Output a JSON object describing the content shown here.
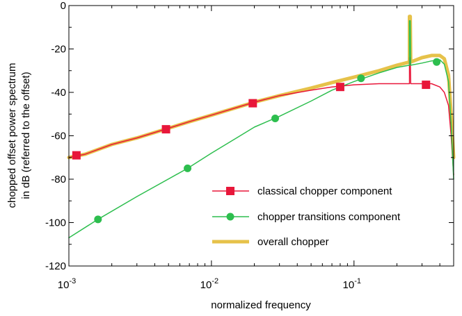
{
  "chart_data": {
    "type": "line",
    "xlabel": "normalized frequency",
    "ylabel_lines": [
      "chopped offset power spectrum",
      "in dB (referred to  the offset)"
    ],
    "x_scale": "log",
    "xlim": [
      0.001,
      0.5
    ],
    "ylim": [
      -120,
      0
    ],
    "x_ticks": [
      {
        "value": 0.001,
        "base": "10",
        "exp": "-3"
      },
      {
        "value": 0.01,
        "base": "10",
        "exp": "-2"
      },
      {
        "value": 0.1,
        "base": "10",
        "exp": "-1"
      }
    ],
    "y_ticks": [
      0,
      -20,
      -40,
      -60,
      -80,
      -100,
      -120
    ],
    "grid": false,
    "legend_position": "lower-right",
    "series": [
      {
        "name": "overall chopper",
        "color": "#E6C24A",
        "style": "thick-line",
        "points": [
          [
            0.001,
            -70
          ],
          [
            0.0013,
            -68.5
          ],
          [
            0.002,
            -64
          ],
          [
            0.003,
            -61
          ],
          [
            0.005,
            -56.5
          ],
          [
            0.007,
            -53.5
          ],
          [
            0.01,
            -50.5
          ],
          [
            0.015,
            -47
          ],
          [
            0.02,
            -44.5
          ],
          [
            0.03,
            -41.5
          ],
          [
            0.05,
            -38
          ],
          [
            0.07,
            -35.5
          ],
          [
            0.1,
            -33
          ],
          [
            0.15,
            -30
          ],
          [
            0.2,
            -27.5
          ],
          [
            0.245,
            -26
          ],
          [
            0.245,
            -5
          ],
          [
            0.248,
            -5
          ],
          [
            0.25,
            -26
          ],
          [
            0.3,
            -24
          ],
          [
            0.35,
            -23
          ],
          [
            0.4,
            -23
          ],
          [
            0.43,
            -24.5
          ],
          [
            0.46,
            -32
          ],
          [
            0.48,
            -50
          ],
          [
            0.5,
            -70
          ]
        ]
      },
      {
        "name": "classical chopper component",
        "color": "#E8173A",
        "marker": "square",
        "points": [
          [
            0.001,
            -70
          ],
          [
            0.0013,
            -68.5
          ],
          [
            0.002,
            -64
          ],
          [
            0.003,
            -61
          ],
          [
            0.005,
            -56.5
          ],
          [
            0.007,
            -53.5
          ],
          [
            0.01,
            -50.5
          ],
          [
            0.015,
            -47
          ],
          [
            0.02,
            -44.5
          ],
          [
            0.03,
            -41.5
          ],
          [
            0.05,
            -39
          ],
          [
            0.07,
            -37.5
          ],
          [
            0.1,
            -36.5
          ],
          [
            0.15,
            -36
          ],
          [
            0.2,
            -36
          ],
          [
            0.245,
            -36
          ],
          [
            0.245,
            -24
          ],
          [
            0.248,
            -24
          ],
          [
            0.25,
            -36
          ],
          [
            0.3,
            -36
          ],
          [
            0.35,
            -36
          ],
          [
            0.4,
            -37.5
          ],
          [
            0.43,
            -40
          ],
          [
            0.46,
            -46
          ],
          [
            0.48,
            -60
          ],
          [
            0.5,
            -78
          ]
        ],
        "markers": [
          [
            0.00113,
            -69
          ],
          [
            0.0048,
            -57
          ],
          [
            0.0195,
            -45
          ],
          [
            0.08,
            -37.5
          ],
          [
            0.32,
            -36.5
          ]
        ]
      },
      {
        "name": "chopper transitions component",
        "color": "#2DBE4E",
        "marker": "circle",
        "points": [
          [
            0.001,
            -107
          ],
          [
            0.0016,
            -98.5
          ],
          [
            0.003,
            -88
          ],
          [
            0.0068,
            -75
          ],
          [
            0.01,
            -68
          ],
          [
            0.015,
            -61
          ],
          [
            0.02,
            -56
          ],
          [
            0.03,
            -51
          ],
          [
            0.05,
            -44
          ],
          [
            0.07,
            -39
          ],
          [
            0.1,
            -35
          ],
          [
            0.15,
            -31
          ],
          [
            0.2,
            -28.5
          ],
          [
            0.245,
            -27.5
          ],
          [
            0.245,
            -7
          ],
          [
            0.248,
            -7
          ],
          [
            0.25,
            -27.5
          ],
          [
            0.3,
            -26.5
          ],
          [
            0.35,
            -25.5
          ],
          [
            0.4,
            -25
          ],
          [
            0.43,
            -27
          ],
          [
            0.46,
            -35
          ],
          [
            0.48,
            -55
          ],
          [
            0.5,
            -80
          ]
        ],
        "markers": [
          [
            0.0016,
            -98.5
          ],
          [
            0.0068,
            -75
          ],
          [
            0.028,
            -52
          ],
          [
            0.112,
            -33.5
          ],
          [
            0.38,
            -26
          ]
        ]
      }
    ],
    "legend_order": [
      1,
      2,
      0
    ]
  }
}
